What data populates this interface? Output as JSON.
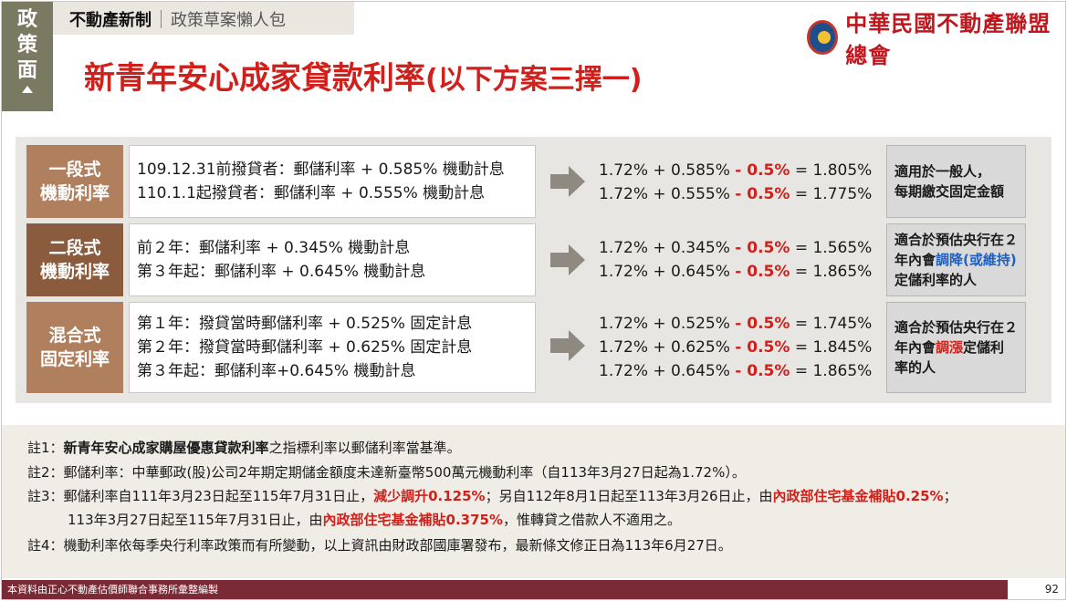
{
  "side_tab": {
    "chars": [
      "政",
      "策",
      "面"
    ]
  },
  "header": {
    "category": "不動產新制",
    "subtitle": "政策草案懶人包",
    "org_name": "中華民國不動產聯盟總會"
  },
  "title": {
    "main": "新青年安心成家貸款利率",
    "suffix": "(以下方案三擇一)"
  },
  "options": [
    {
      "label_line1": "一段式",
      "label_line2": "機動利率",
      "desc": [
        "109.12.31前撥貸者：郵儲利率 + 0.585% 機動計息",
        "110.1.1起撥貸者：郵儲利率 + 0.555% 機動計息"
      ],
      "calc": [
        {
          "base": "1.72% + 0.585%",
          "minus": "- 0.5%",
          "result": "= 1.805%"
        },
        {
          "base": "1.72% + 0.555%",
          "minus": "- 0.5%",
          "result": "= 1.775%"
        }
      ],
      "note": {
        "line1": "適用於一般人，",
        "line2": "每期繳交固定金額"
      }
    },
    {
      "label_line1": "二段式",
      "label_line2": "機動利率",
      "desc": [
        "前２年：郵儲利率 + 0.345% 機動計息",
        "第３年起：郵儲利率 + 0.645% 機動計息"
      ],
      "calc": [
        {
          "base": "1.72% + 0.345%",
          "minus": "- 0.5%",
          "result": "= 1.565%"
        },
        {
          "base": "1.72% + 0.645%",
          "minus": "- 0.5%",
          "result": "= 1.865%"
        }
      ],
      "note": {
        "pre": "適合於預估央行在２年內會",
        "highlight": "調降(或維持)",
        "post": "定儲利率的人"
      }
    },
    {
      "label_line1": "混合式",
      "label_line2": "固定利率",
      "desc": [
        "第１年：撥貸當時郵儲利率 + 0.525% 固定計息",
        "第２年：撥貸當時郵儲利率 + 0.625% 固定計息",
        "第３年起：郵儲利率+0.645% 機動計息"
      ],
      "calc": [
        {
          "base": "1.72% + 0.525%",
          "minus": "- 0.5%",
          "result": "= 1.745%"
        },
        {
          "base": "1.72% + 0.625%",
          "minus": "- 0.5%",
          "result": "= 1.845%"
        },
        {
          "base": "1.72% + 0.645%",
          "minus": "- 0.5%",
          "result": "= 1.865%"
        }
      ],
      "note": {
        "pre": "適合於預估央行在２年內會",
        "highlight": "調漲",
        "post": "定儲利率的人"
      }
    }
  ],
  "notes": {
    "n1": {
      "tag": "註1：",
      "bold": "新青年安心成家購屋優惠貸款利率",
      "rest": "之指標利率以郵儲利率當基準。"
    },
    "n2": {
      "tag": "註2：",
      "text": "郵儲利率：中華郵政(股)公司2年期定期儲金額度未達新臺幣500萬元機動利率（自113年3月27日起為1.72%）。"
    },
    "n3": {
      "tag": "註3：",
      "a": "郵儲利率自111年3月23日起至115年7月31日止，",
      "b": "減少調升0.125%",
      "c": "；另自112年8月1日起至113年3月26日止，由",
      "d": "內政部住宅基金補貼0.25%",
      "e": "；",
      "f": "113年3月27日起至115年7月31日止，由",
      "g": "內政部住宅基金補貼0.375%",
      "h": "，惟轉貸之借款人不適用之。"
    },
    "n4": {
      "tag": "註4：",
      "text": "機動利率依每季央行利率政策而有所變動，以上資訊由財政部國庫署發布，最新條文修正日為113年6月27日。"
    }
  },
  "footer": {
    "text": "本資料由正心不動產估價師聯合事務所彙整編製",
    "page": "92"
  },
  "colors": {
    "title_red": "#d0201b",
    "label_brown_light": "#b07f5e",
    "label_brown_dark": "#8b5b3e",
    "footer_maroon": "#7a2a35"
  }
}
